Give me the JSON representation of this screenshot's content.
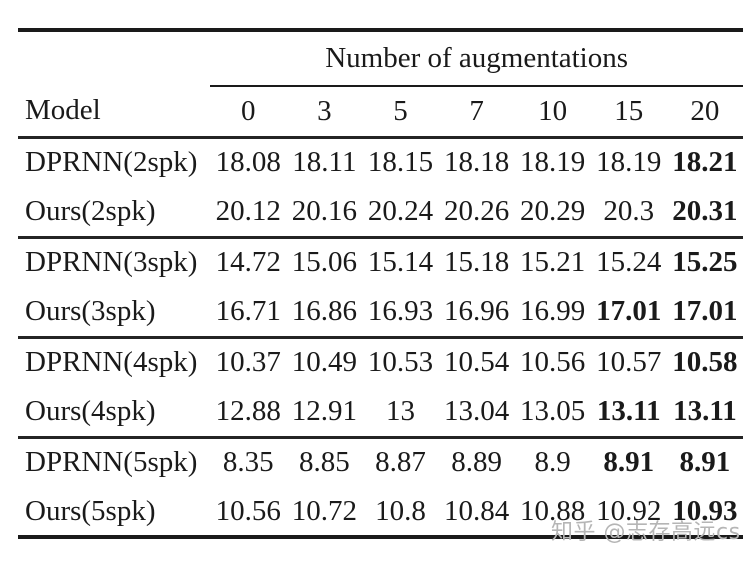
{
  "table": {
    "span_header": "Number of augmentations",
    "model_header": "Model",
    "columns": [
      "0",
      "3",
      "5",
      "7",
      "10",
      "15",
      "20"
    ],
    "groups": [
      {
        "rows": [
          {
            "model": "DPRNN(2spk)",
            "values": [
              "18.08",
              "18.11",
              "18.15",
              "18.18",
              "18.19",
              "18.19",
              "18.21"
            ],
            "bold": [
              6
            ]
          },
          {
            "model": "Ours(2spk)",
            "values": [
              "20.12",
              "20.16",
              "20.24",
              "20.26",
              "20.29",
              "20.3",
              "20.31"
            ],
            "bold": [
              6
            ]
          }
        ]
      },
      {
        "rows": [
          {
            "model": "DPRNN(3spk)",
            "values": [
              "14.72",
              "15.06",
              "15.14",
              "15.18",
              "15.21",
              "15.24",
              "15.25"
            ],
            "bold": [
              6
            ]
          },
          {
            "model": "Ours(3spk)",
            "values": [
              "16.71",
              "16.86",
              "16.93",
              "16.96",
              "16.99",
              "17.01",
              "17.01"
            ],
            "bold": [
              5,
              6
            ]
          }
        ]
      },
      {
        "rows": [
          {
            "model": "DPRNN(4spk)",
            "values": [
              "10.37",
              "10.49",
              "10.53",
              "10.54",
              "10.56",
              "10.57",
              "10.58"
            ],
            "bold": [
              6
            ]
          },
          {
            "model": "Ours(4spk)",
            "values": [
              "12.88",
              "12.91",
              "13",
              "13.04",
              "13.05",
              "13.11",
              "13.11"
            ],
            "bold": [
              5,
              6
            ]
          }
        ]
      },
      {
        "rows": [
          {
            "model": "DPRNN(5spk)",
            "values": [
              "8.35",
              "8.85",
              "8.87",
              "8.89",
              "8.9",
              "8.91",
              "8.91"
            ],
            "bold": [
              5,
              6
            ]
          },
          {
            "model": "Ours(5spk)",
            "values": [
              "10.56",
              "10.72",
              "10.8",
              "10.84",
              "10.88",
              "10.92",
              "10.93"
            ],
            "bold": [
              6
            ]
          }
        ]
      }
    ]
  },
  "watermark": {
    "text": "知乎 @志存高远cs",
    "color": "#b5b5b5"
  },
  "colors": {
    "text": "#1a1a1a",
    "rule": "#1a1a1a",
    "background": "#ffffff"
  }
}
